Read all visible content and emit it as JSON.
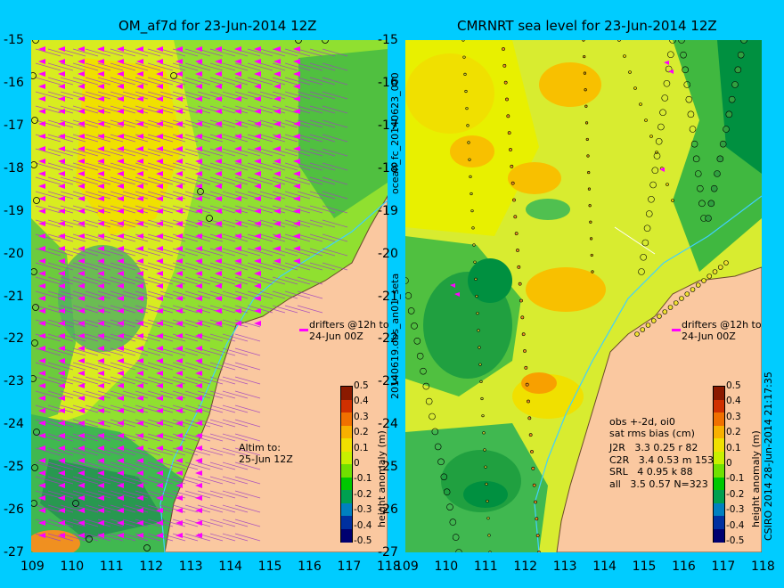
{
  "left_panel": {
    "title": "OM_af7d for 23-Jun-2014 12Z",
    "drifters_text": [
      "drifters @12h to",
      "24-Jun 00Z"
    ],
    "altim_text": [
      "Altim to:",
      "25-Jun 12Z"
    ]
  },
  "right_panel": {
    "title": "CMRNRT sea level  for 23-Jun-2014 12Z",
    "drifters_text": [
      "drifters @12h to",
      "24-Jun 00Z"
    ],
    "stats": {
      "header1": "obs +-2d, oi0",
      "header2": "sat rms bias (cm)",
      "rows": [
        "J2R   3.3 0.25 r 82",
        "C2R   3.4 0.53 m 153",
        "SRL   4 0.95 k 88",
        "all   3.5 0.57 N=323"
      ]
    }
  },
  "axes": {
    "y_ticks": [
      "-15",
      "-16",
      "-17",
      "-18",
      "-19",
      "-20",
      "-21",
      "-22",
      "-23",
      "-24",
      "-25",
      "-26",
      "-27"
    ],
    "x_ticks": [
      "109",
      "110",
      "111",
      "112",
      "113",
      "114",
      "115",
      "116",
      "117",
      "118"
    ]
  },
  "colorbar": {
    "label": "height anomaly (m)",
    "ticks": [
      "0.5",
      "0.4",
      "0.3",
      "0.2",
      "0.1",
      "0",
      "-0.1",
      "-0.2",
      "-0.3",
      "-0.4",
      "-0.5"
    ],
    "colors": [
      "#8b1a00",
      "#d03000",
      "#f07000",
      "#f8b000",
      "#f0e000",
      "#c8f000",
      "#70e000",
      "#00c800",
      "#00a050",
      "#0080c0",
      "#0030a0",
      "#000070"
    ]
  },
  "side_labels": {
    "middle_upper": "ocean_fc_20140623_000",
    "middle_lower": "20140619.obs_an01_seta",
    "right": "CSIRO 2014   28-Jun-2014 21:17:35"
  },
  "colors": {
    "background": "#00ccff",
    "land": "#fac8a0",
    "drifter": "#ff00ff"
  }
}
